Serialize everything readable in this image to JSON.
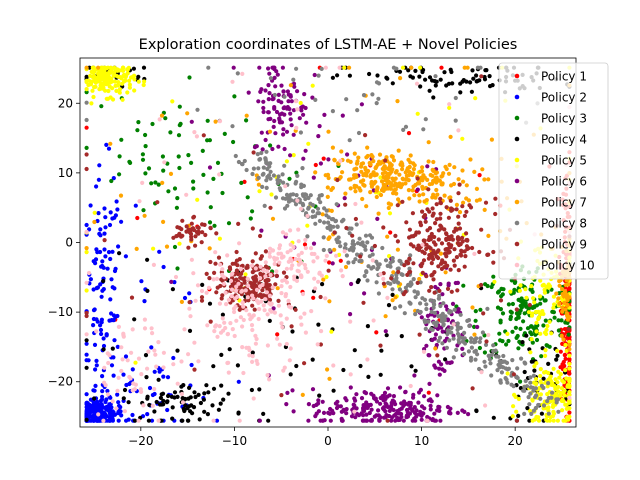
{
  "chart_data": {
    "type": "scatter",
    "title": "Exploration coordinates of LSTM-AE + Novel Policies",
    "xlabel": "",
    "ylabel": "",
    "xlim": [
      -26.5,
      26.5
    ],
    "ylim": [
      -26.5,
      26.5
    ],
    "xticks": [
      -20,
      -10,
      0,
      10,
      20
    ],
    "yticks": [
      -20,
      -10,
      0,
      10,
      20
    ],
    "grid": false,
    "legend_position": "top-right",
    "series": [
      {
        "name": "Policy 1",
        "color": "#ff0000",
        "clusters": [
          {
            "cx": 25.6,
            "cy": -12,
            "sx": 0.35,
            "sy": 7,
            "n": 160
          },
          {
            "cx": 25.4,
            "cy": 4,
            "sx": 0.5,
            "sy": 6,
            "n": 30
          },
          {
            "cx": 0,
            "cy": 0,
            "sx": 15,
            "sy": 14,
            "n": 30
          }
        ]
      },
      {
        "name": "Policy 2",
        "color": "#0000ff",
        "clusters": [
          {
            "cx": -24.5,
            "cy": -24.5,
            "sx": 1.3,
            "sy": 1.0,
            "n": 170
          },
          {
            "cx": -24,
            "cy": -8,
            "sx": 1.0,
            "sy": 9,
            "n": 110
          },
          {
            "cx": -19,
            "cy": -22,
            "sx": 3,
            "sy": 2.5,
            "n": 40
          },
          {
            "cx": -20,
            "cy": -12,
            "sx": 4,
            "sy": 10,
            "n": 25
          }
        ]
      },
      {
        "name": "Policy 3",
        "color": "#008000",
        "clusters": [
          {
            "cx": 21,
            "cy": -10,
            "sx": 2.5,
            "sy": 3.5,
            "n": 170
          },
          {
            "cx": -18,
            "cy": 12,
            "sx": 5,
            "sy": 5,
            "n": 60
          },
          {
            "cx": -10,
            "cy": 5,
            "sx": 5,
            "sy": 6,
            "n": 20
          }
        ]
      },
      {
        "name": "Policy 4",
        "color": "#000000",
        "clusters": [
          {
            "cx": 14,
            "cy": 23.5,
            "sx": 6,
            "sy": 1.2,
            "n": 85
          },
          {
            "cx": -23,
            "cy": 24.5,
            "sx": 2,
            "sy": 0.8,
            "n": 25
          },
          {
            "cx": -16,
            "cy": -23,
            "sx": 3,
            "sy": 1.5,
            "n": 75
          },
          {
            "cx": 0,
            "cy": -15,
            "sx": 14,
            "sy": 6,
            "n": 80
          },
          {
            "cx": 22,
            "cy": -20,
            "sx": 2,
            "sy": 3,
            "n": 40
          }
        ]
      },
      {
        "name": "Policy 5",
        "color": "#ffff00",
        "clusters": [
          {
            "cx": -23.5,
            "cy": 23.5,
            "sx": 1.4,
            "sy": 1.2,
            "n": 150
          },
          {
            "cx": 24,
            "cy": -22,
            "sx": 1.6,
            "sy": 2.5,
            "n": 150
          },
          {
            "cx": 23,
            "cy": -7,
            "sx": 1.5,
            "sy": 4,
            "n": 80
          },
          {
            "cx": 0,
            "cy": 5,
            "sx": 14,
            "sy": 12,
            "n": 60
          }
        ]
      },
      {
        "name": "Policy 6",
        "color": "#800080",
        "clusters": [
          {
            "cx": 6,
            "cy": -24,
            "sx": 4,
            "sy": 1.5,
            "n": 220
          },
          {
            "cx": -5,
            "cy": 20,
            "sx": 1.5,
            "sy": 4,
            "n": 100
          },
          {
            "cx": 12,
            "cy": -12,
            "sx": 1.5,
            "sy": 4,
            "n": 80
          },
          {
            "cx": 0,
            "cy": 5,
            "sx": 6,
            "sy": 8,
            "n": 40
          }
        ]
      },
      {
        "name": "Policy 7",
        "color": "#ffa500",
        "clusters": [
          {
            "cx": 6,
            "cy": 9.5,
            "sx": 3,
            "sy": 1.8,
            "n": 230
          },
          {
            "cx": 25.3,
            "cy": -7,
            "sx": 0.4,
            "sy": 3,
            "n": 50
          },
          {
            "cx": 12,
            "cy": 8,
            "sx": 3,
            "sy": 2,
            "n": 50
          },
          {
            "cx": 5,
            "cy": 5,
            "sx": 15,
            "sy": 12,
            "n": 100
          }
        ]
      },
      {
        "name": "Policy 8",
        "color": "#808080",
        "clusters": [
          {
            "type": "line",
            "x0": -8,
            "y0": 12,
            "x1": 24,
            "y1": -24,
            "spread": 1.2,
            "n": 420
          },
          {
            "cx": 0,
            "cy": 21,
            "sx": 12,
            "sy": 3,
            "n": 40
          }
        ]
      },
      {
        "name": "Policy 9",
        "color": "#a52a2a",
        "clusters": [
          {
            "cx": 12,
            "cy": 0,
            "sx": 2.5,
            "sy": 3,
            "n": 200
          },
          {
            "cx": -8.5,
            "cy": -6,
            "sx": 1.8,
            "sy": 2,
            "n": 180
          },
          {
            "cx": -14.5,
            "cy": 1.5,
            "sx": 1,
            "sy": 0.8,
            "n": 40
          },
          {
            "cx": 0,
            "cy": -5,
            "sx": 15,
            "sy": 13,
            "n": 60
          }
        ]
      },
      {
        "name": "Policy 10",
        "color": "#ffc0cb",
        "clusters": [
          {
            "cx": -8,
            "cy": -10,
            "sx": 3,
            "sy": 4,
            "n": 160
          },
          {
            "cx": -3,
            "cy": -2,
            "sx": 2,
            "sy": 2,
            "n": 60
          },
          {
            "cx": -20,
            "cy": -18,
            "sx": 3,
            "sy": 4,
            "n": 60
          },
          {
            "cx": 0,
            "cy": 0,
            "sx": 15,
            "sy": 14,
            "n": 70
          }
        ]
      }
    ]
  }
}
